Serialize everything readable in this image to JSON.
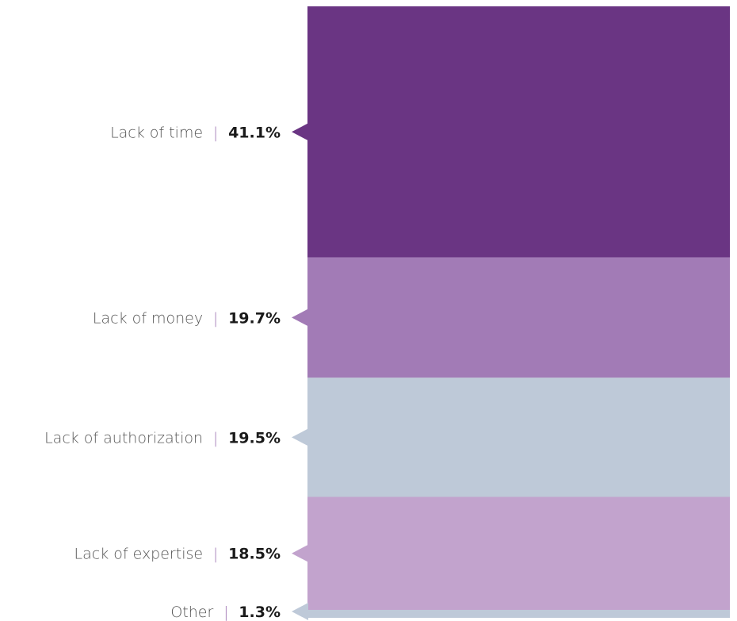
{
  "chart_data": {
    "type": "stacked-bar",
    "series": [
      {
        "category": "Lack of time",
        "value": 41.1,
        "value_label": "41.1%",
        "color": "#6a3583"
      },
      {
        "category": "Lack of money",
        "value": 19.7,
        "value_label": "19.7%",
        "color": "#a27bb6"
      },
      {
        "category": "Lack of authorization",
        "value": 19.5,
        "value_label": "19.5%",
        "color": "#bec9d8"
      },
      {
        "category": "Lack of expertise",
        "value": 18.5,
        "value_label": "18.5%",
        "color": "#c2a3cd"
      },
      {
        "category": "Other",
        "value": 1.3,
        "value_label": "1.3%",
        "color": "#bec9d8"
      }
    ],
    "separator": "|",
    "separator_color": "#a27bb6"
  }
}
